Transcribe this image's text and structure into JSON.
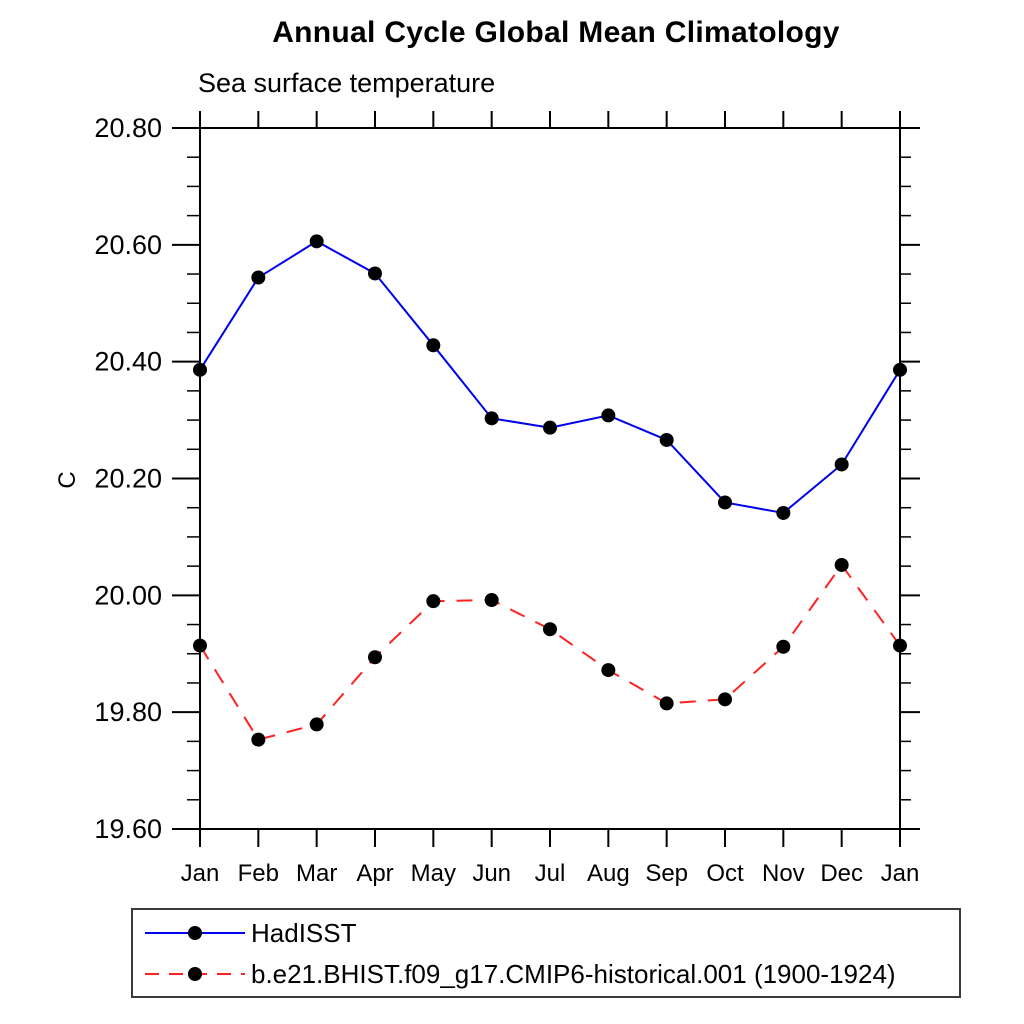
{
  "chart_data": {
    "type": "line",
    "title": "Annual Cycle Global Mean Climatology",
    "subtitle": "Sea surface temperature",
    "ylabel": "C",
    "categories": [
      "Jan",
      "Feb",
      "Mar",
      "Apr",
      "May",
      "Jun",
      "Jul",
      "Aug",
      "Sep",
      "Oct",
      "Nov",
      "Dec",
      "Jan"
    ],
    "series": [
      {
        "name": "HadISST",
        "color": "#0000ee",
        "style": "solid",
        "marker": "circle",
        "marker_color": "#000000",
        "values": [
          20.386,
          20.544,
          20.606,
          20.551,
          20.428,
          20.303,
          20.287,
          20.308,
          20.266,
          20.159,
          20.141,
          20.224,
          20.386
        ]
      },
      {
        "name": "b.e21.BHIST.f09_g17.CMIP6-historical.001 (1900-1924)",
        "color": "#ff2222",
        "style": "dashed",
        "marker": "circle",
        "marker_color": "#000000",
        "values": [
          19.914,
          19.753,
          19.779,
          19.894,
          19.99,
          19.992,
          19.942,
          19.872,
          19.815,
          19.822,
          19.912,
          20.052,
          19.914
        ]
      }
    ],
    "ylim": [
      19.6,
      20.8
    ],
    "ytick_major_step": 0.2,
    "ytick_minor_step": 0.05,
    "ytick_labels": [
      "19.60",
      "19.80",
      "20.00",
      "20.20",
      "20.40",
      "20.60",
      "20.80"
    ],
    "grid": false,
    "legend_position": "bottom-left",
    "axis_color": "#000000"
  }
}
